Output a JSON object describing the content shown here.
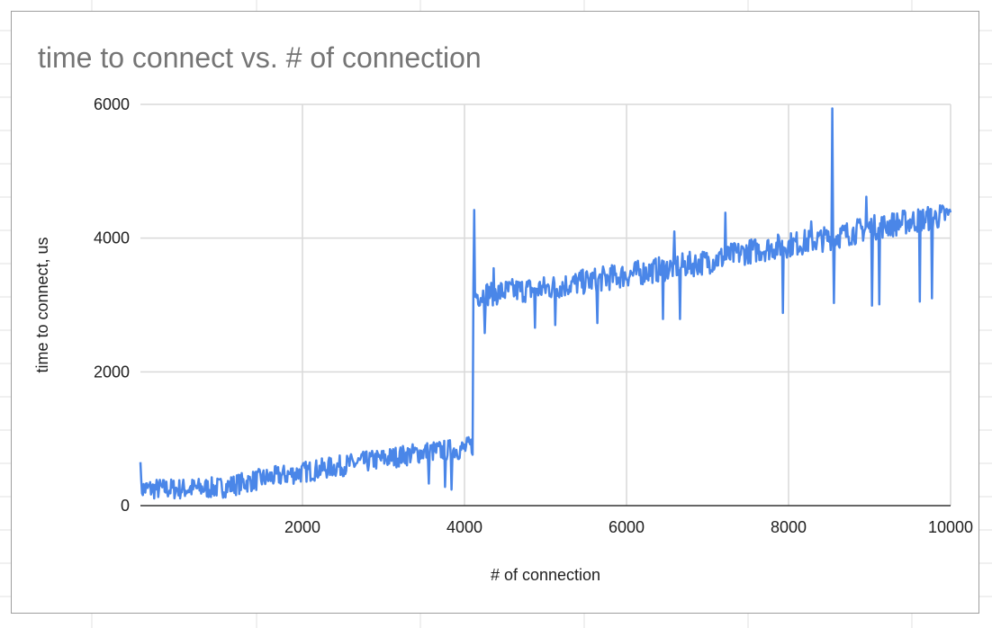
{
  "colors": {
    "series": "#4a86e8",
    "grid": "#d9d9d9",
    "axis": "#333333",
    "text": "#212121",
    "title": "#757575"
  },
  "chart_data": {
    "type": "line",
    "title": "time to connect vs. # of connection",
    "xlabel": "# of connection",
    "ylabel": "time to connect, us",
    "xlim": [
      0,
      10000
    ],
    "ylim": [
      0,
      6000
    ],
    "x_ticks": [
      2000,
      4000,
      6000,
      8000,
      10000
    ],
    "y_ticks": [
      0,
      2000,
      4000,
      6000
    ],
    "grid": true,
    "legend": "none",
    "series": [
      {
        "x": [
          0,
          500,
          1000,
          1500,
          2000,
          2500,
          3000,
          3500,
          4000,
          4100,
          4110,
          4150,
          4500,
          5000,
          5500,
          6000,
          6500,
          7000,
          7500,
          8000,
          8500,
          9000,
          9500,
          10000
        ],
        "values": [
          250,
          250,
          270,
          400,
          500,
          600,
          700,
          800,
          850,
          900,
          3150,
          3150,
          3200,
          3250,
          3350,
          3450,
          3550,
          3650,
          3800,
          3900,
          4000,
          4150,
          4250,
          4350
        ]
      }
    ],
    "spikes": [
      {
        "x": 4120,
        "y": 4420
      },
      {
        "x": 8540,
        "y": 5940
      },
      {
        "x": 8960,
        "y": 4620
      },
      {
        "x": 6590,
        "y": 4100
      },
      {
        "x": 7220,
        "y": 4380
      },
      {
        "x": 4360,
        "y": 3550
      },
      {
        "x": 8280,
        "y": 4250
      },
      {
        "x": 0,
        "y": 650
      }
    ],
    "dips": [
      {
        "x": 3560,
        "y": 330
      },
      {
        "x": 3760,
        "y": 280
      },
      {
        "x": 3840,
        "y": 240
      },
      {
        "x": 4250,
        "y": 2580
      },
      {
        "x": 4870,
        "y": 2660
      },
      {
        "x": 5120,
        "y": 2700
      },
      {
        "x": 5640,
        "y": 2730
      },
      {
        "x": 6450,
        "y": 2790
      },
      {
        "x": 6660,
        "y": 2790
      },
      {
        "x": 7930,
        "y": 2880
      },
      {
        "x": 8560,
        "y": 3030
      },
      {
        "x": 9030,
        "y": 2990
      },
      {
        "x": 9120,
        "y": 3010
      },
      {
        "x": 9620,
        "y": 3050
      },
      {
        "x": 9770,
        "y": 3100
      }
    ]
  }
}
